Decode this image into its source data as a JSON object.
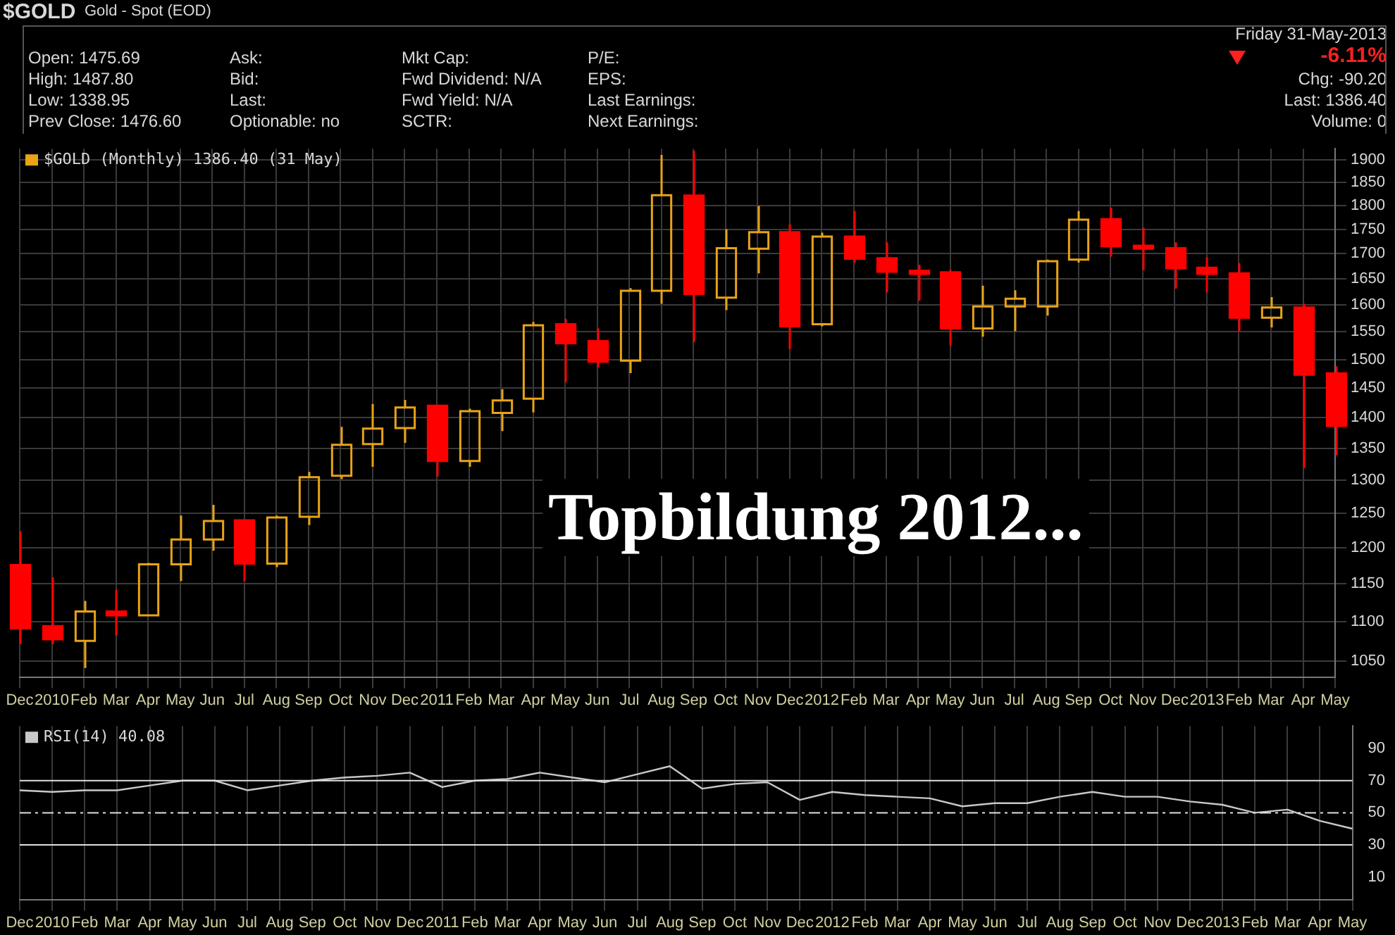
{
  "chart_data": [
    {
      "type": "candlestick",
      "title": "$GOLD",
      "subtitle": "Gold - Spot (EOD)",
      "categories": [
        "Dec",
        "2010",
        "Feb",
        "Mar",
        "Apr",
        "May",
        "Jun",
        "Jul",
        "Aug",
        "Sep",
        "Oct",
        "Nov",
        "Dec",
        "2011",
        "Feb",
        "Mar",
        "Apr",
        "May",
        "Jun",
        "Jul",
        "Aug",
        "Sep",
        "Oct",
        "Nov",
        "Dec",
        "2012",
        "Feb",
        "Mar",
        "Apr",
        "May",
        "Jun",
        "Jul",
        "Aug",
        "Sep",
        "Oct",
        "Nov",
        "Dec",
        "2013",
        "Feb",
        "Mar",
        "Apr",
        "May"
      ],
      "series": [
        {
          "name": "$GOLD (Monthly) 1386.40 (31 May)",
          "color": "#e8a317",
          "ohlc": [
            [
              1176,
              1224,
              1071,
              1091
            ],
            [
              1094,
              1159,
              1071,
              1077
            ],
            [
              1075,
              1127,
              1041,
              1113
            ],
            [
              1113,
              1142,
              1082,
              1108
            ],
            [
              1108,
              1179,
              1107,
              1177
            ],
            [
              1177,
              1247,
              1154,
              1212
            ],
            [
              1212,
              1263,
              1196,
              1239
            ],
            [
              1240,
              1241,
              1154,
              1178
            ],
            [
              1178,
              1247,
              1173,
              1244
            ],
            [
              1245,
              1313,
              1233,
              1305
            ],
            [
              1307,
              1385,
              1302,
              1356
            ],
            [
              1357,
              1423,
              1321,
              1382
            ],
            [
              1383,
              1430,
              1359,
              1417
            ],
            [
              1420,
              1421,
              1306,
              1330
            ],
            [
              1330,
              1415,
              1321,
              1411
            ],
            [
              1408,
              1448,
              1378,
              1429
            ],
            [
              1432,
              1568,
              1409,
              1562
            ],
            [
              1564,
              1574,
              1460,
              1529
            ],
            [
              1533,
              1556,
              1486,
              1496
            ],
            [
              1498,
              1632,
              1476,
              1627
            ],
            [
              1627,
              1911,
              1602,
              1822
            ],
            [
              1821,
              1920,
              1531,
              1621
            ],
            [
              1614,
              1750,
              1590,
              1711
            ],
            [
              1710,
              1799,
              1661,
              1744
            ],
            [
              1744,
              1760,
              1519,
              1560
            ],
            [
              1564,
              1743,
              1560,
              1735
            ],
            [
              1735,
              1788,
              1682,
              1690
            ],
            [
              1691,
              1723,
              1624,
              1664
            ],
            [
              1666,
              1678,
              1608,
              1660
            ],
            [
              1663,
              1668,
              1525,
              1556
            ],
            [
              1556,
              1637,
              1541,
              1597
            ],
            [
              1597,
              1628,
              1551,
              1612
            ],
            [
              1597,
              1688,
              1580,
              1685
            ],
            [
              1688,
              1788,
              1682,
              1770
            ],
            [
              1771,
              1795,
              1694,
              1715
            ],
            [
              1716,
              1753,
              1667,
              1710
            ],
            [
              1711,
              1723,
              1631,
              1671
            ],
            [
              1672,
              1693,
              1624,
              1660
            ],
            [
              1661,
              1681,
              1550,
              1576
            ],
            [
              1576,
              1615,
              1558,
              1595
            ],
            [
              1595,
              1602,
              1319,
              1473
            ],
            [
              1475.69,
              1487.8,
              1338.95,
              1386.4
            ]
          ],
          "colors": [
            "#ff0000",
            "#ff0000",
            "#e8a317",
            "#ff0000",
            "#e8a317",
            "#e8a317",
            "#e8a317",
            "#ff0000",
            "#e8a317",
            "#e8a317",
            "#e8a317",
            "#e8a317",
            "#e8a317",
            "#ff0000",
            "#e8a317",
            "#e8a317",
            "#e8a317",
            "#ff0000",
            "#ff0000",
            "#e8a317",
            "#e8a317",
            "#ff0000",
            "#e8a317",
            "#e8a317",
            "#ff0000",
            "#e8a317",
            "#ff0000",
            "#ff0000",
            "#ff0000",
            "#ff0000",
            "#e8a317",
            "#e8a317",
            "#e8a317",
            "#e8a317",
            "#ff0000",
            "#ff0000",
            "#ff0000",
            "#ff0000",
            "#ff0000",
            "#e8a317",
            "#ff0000",
            "#ff0000"
          ]
        }
      ],
      "log": "y",
      "ylim": [
        1030,
        1925
      ],
      "yticks": [
        1050,
        1100,
        1150,
        1200,
        1250,
        1300,
        1350,
        1400,
        1450,
        1500,
        1550,
        1600,
        1650,
        1700,
        1750,
        1800,
        1850,
        1900
      ],
      "grid": true,
      "legend": "top left",
      "annotations": [
        "Open: 1475.69",
        "High: 1487.80",
        "Low: 1338.95",
        "Prev Close: 1476.60",
        "Ask:",
        "Bid:",
        "Last:",
        "Optionable: no",
        "Mkt Cap:",
        "Fwd Dividend: N/A",
        "Fwd Yield: N/A",
        "SCTR:",
        "P/E:",
        "EPS:",
        "Last Earnings:",
        "Next Earnings:",
        "Friday 31-May-2013",
        "-6.11%",
        "Chg: -90.20",
        "Last: 1386.40",
        "Volume: 0",
        "Topbildung 2012..."
      ]
    },
    {
      "type": "line",
      "categories": [
        "Dec",
        "2010",
        "Feb",
        "Mar",
        "Apr",
        "May",
        "Jun",
        "Jul",
        "Aug",
        "Sep",
        "Oct",
        "Nov",
        "Dec",
        "2011",
        "Feb",
        "Mar",
        "Apr",
        "May",
        "Jun",
        "Jul",
        "Aug",
        "Sep",
        "Oct",
        "Nov",
        "Dec",
        "2012",
        "Feb",
        "Mar",
        "Apr",
        "May",
        "Jun",
        "Jul",
        "Aug",
        "Sep",
        "Oct",
        "Nov",
        "Dec",
        "2013",
        "Feb",
        "Mar",
        "Apr",
        "May"
      ],
      "series": [
        {
          "name": "RSI(14) 40.08",
          "color": "#c8c8c8",
          "values": [
            64,
            63,
            64,
            64,
            67,
            70,
            70,
            64,
            67,
            70,
            72,
            73,
            75,
            66,
            70,
            71,
            75,
            72,
            69,
            74,
            79,
            65,
            68,
            69,
            58,
            63,
            61,
            60,
            59,
            54,
            56,
            56,
            60,
            63,
            60,
            60,
            57,
            55,
            50,
            52,
            45,
            40.08
          ]
        }
      ],
      "ylim": [
        -4,
        104
      ],
      "yticks": [
        10,
        30,
        50,
        70,
        90
      ],
      "grid": "x",
      "legend": "top left",
      "marker": "none",
      "ref_lines": [
        {
          "axis": "y",
          "value": 70,
          "color": "#e0e0e0",
          "line_style": "solid"
        },
        {
          "axis": "y",
          "value": 50,
          "color": "#e0e0e0",
          "line_style": "dashed"
        },
        {
          "axis": "y",
          "value": 30,
          "color": "#e0e0e0",
          "line_style": "solid"
        }
      ]
    }
  ]
}
